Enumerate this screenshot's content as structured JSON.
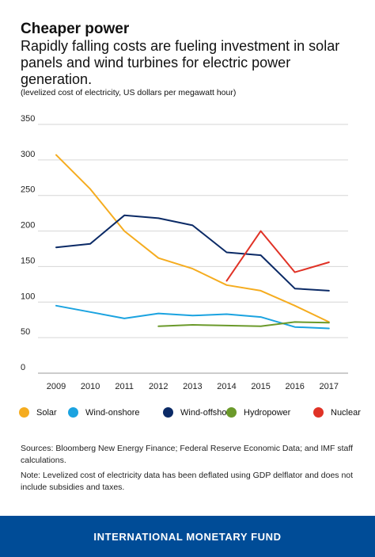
{
  "title": "Cheaper power",
  "subtitle": "Rapidly falling costs are fueling investment in solar panels and wind turbines for electric power generation.",
  "units": "(levelized cost of electricity, US dollars per megawatt hour)",
  "notes": {
    "sources": "Sources: Bloomberg New Energy Finance; Federal Reserve Economic Data; and IMF staff calculations.",
    "note": "Note: Levelized cost of electricity data has been deflated using GDP delflator and does not include subsidies and taxes."
  },
  "footer": "INTERNATIONAL MONETARY FUND",
  "chart_data": {
    "type": "line",
    "title": "Cheaper power",
    "x": [
      "2009",
      "2010",
      "2011",
      "2012",
      "2013",
      "2014",
      "2015",
      "2016",
      "2017"
    ],
    "ylim": [
      0,
      350
    ],
    "yticks": [
      0,
      50,
      100,
      150,
      200,
      250,
      300,
      350
    ],
    "ytick_labels": [
      "0",
      "50",
      "100",
      "150",
      "200",
      "250",
      "300",
      "350"
    ],
    "grid": true,
    "legend": "bottom",
    "series": [
      {
        "name": "Solar",
        "color": "#f5ac1f",
        "values": [
          307,
          259,
          200,
          162,
          147,
          124,
          116,
          95,
          72
        ]
      },
      {
        "name": "Wind-onshore",
        "color": "#1ba3e0",
        "values": [
          95,
          86,
          77,
          84,
          81,
          83,
          79,
          65,
          63
        ]
      },
      {
        "name": "Wind-offshore",
        "color": "#0b2a66",
        "values": [
          177,
          182,
          222,
          218,
          208,
          170,
          166,
          119,
          116
        ]
      },
      {
        "name": "Hydropower",
        "color": "#6b9a2b",
        "values": [
          null,
          null,
          null,
          66,
          68,
          67,
          66,
          72,
          71
        ]
      },
      {
        "name": "Nuclear",
        "color": "#e03226",
        "values": [
          null,
          null,
          null,
          null,
          null,
          130,
          200,
          142,
          156
        ]
      }
    ]
  }
}
